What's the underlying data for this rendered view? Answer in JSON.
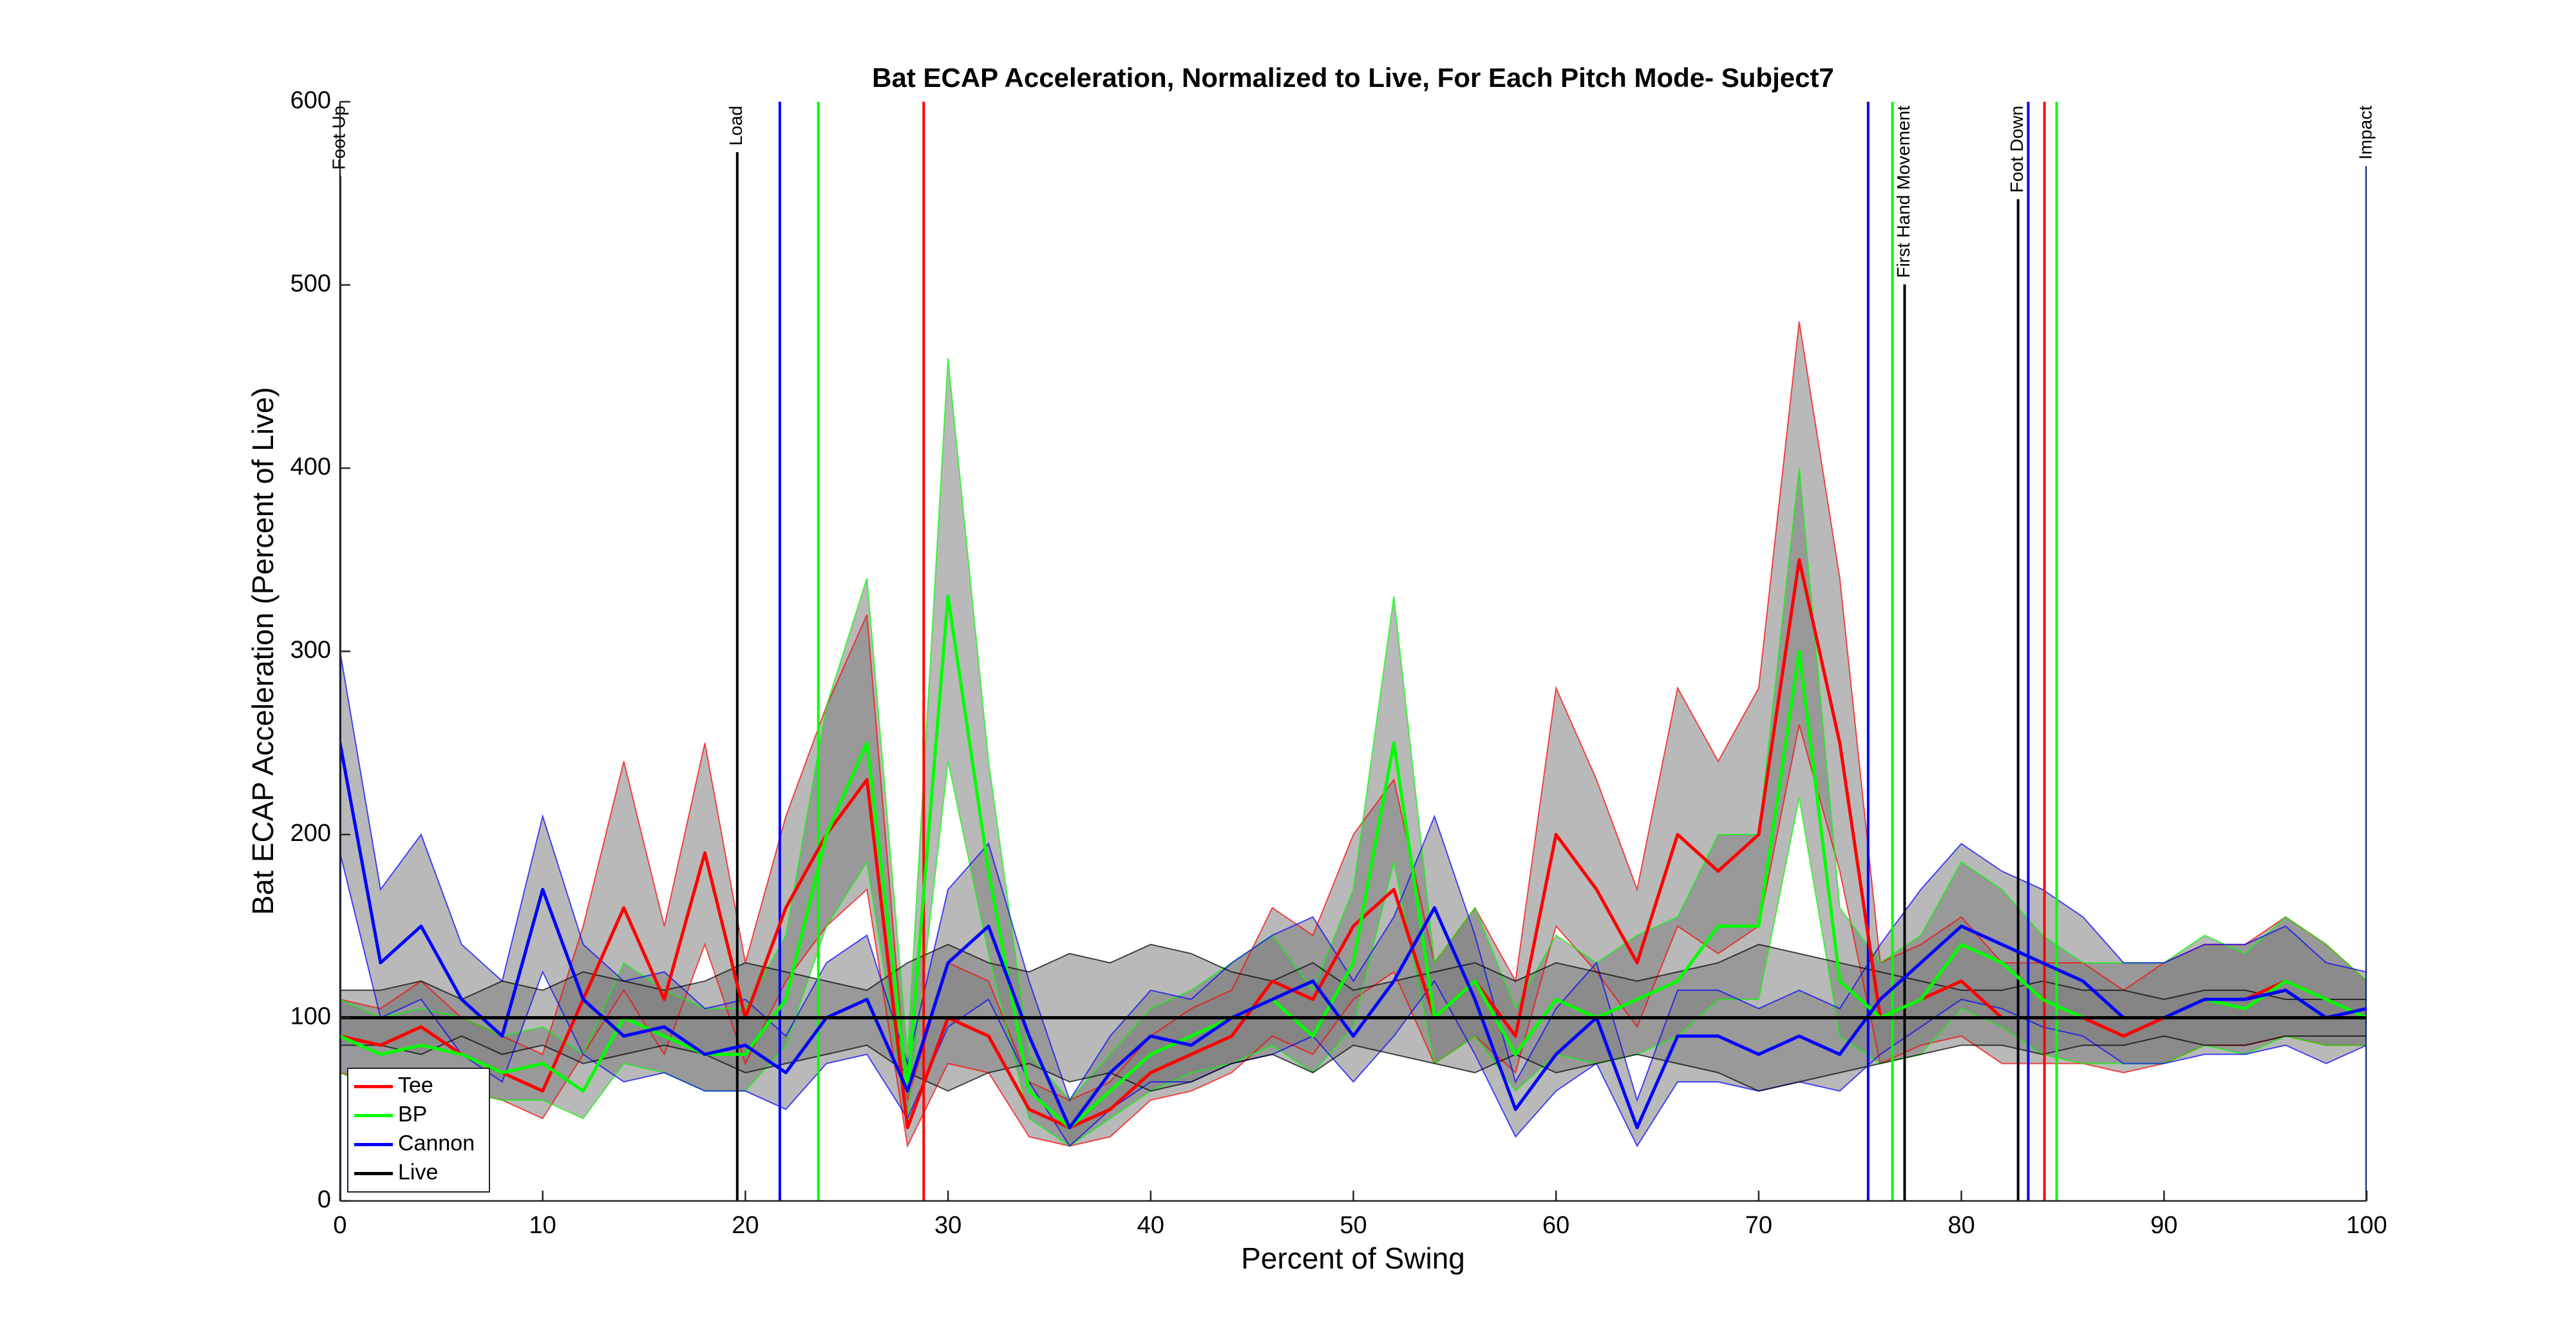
{
  "chart_data": {
    "type": "line",
    "title": "Bat ECAP Acceleration, Normalized to Live, For Each Pitch Mode- Subject7",
    "xlabel": "Percent of Swing",
    "ylabel": "Bat ECAP Acceleration (Percent of Live)",
    "xlim": [
      0,
      100
    ],
    "ylim": [
      0,
      600
    ],
    "xticks": [
      0,
      10,
      20,
      30,
      40,
      50,
      60,
      70,
      80,
      90,
      100
    ],
    "yticks": [
      0,
      100,
      200,
      300,
      400,
      500,
      600
    ],
    "legend": "lower left",
    "band_color": "#808080",
    "x": [
      0,
      2,
      4,
      6,
      8,
      10,
      12,
      14,
      16,
      18,
      20,
      22,
      24,
      26,
      28,
      30,
      32,
      34,
      36,
      38,
      40,
      42,
      44,
      46,
      48,
      50,
      52,
      54,
      56,
      58,
      60,
      62,
      64,
      66,
      68,
      70,
      72,
      74,
      76,
      78,
      80,
      82,
      84,
      86,
      88,
      90,
      92,
      94,
      96,
      98,
      100
    ],
    "series": [
      {
        "name": "Tee",
        "color": "#ff0000",
        "values": [
          90,
          85,
          95,
          80,
          70,
          60,
          110,
          160,
          110,
          190,
          100,
          160,
          200,
          230,
          40,
          100,
          90,
          50,
          40,
          50,
          70,
          80,
          90,
          120,
          110,
          150,
          170,
          100,
          120,
          90,
          200,
          170,
          130,
          200,
          180,
          200,
          350,
          250,
          100,
          110,
          120,
          100,
          100,
          100,
          90,
          100,
          110,
          110,
          120,
          110,
          100
        ],
        "upper": [
          110,
          105,
          120,
          100,
          90,
          80,
          150,
          240,
          150,
          250,
          130,
          210,
          270,
          320,
          55,
          130,
          120,
          65,
          55,
          65,
          90,
          105,
          115,
          160,
          145,
          200,
          230,
          130,
          160,
          120,
          280,
          230,
          170,
          280,
          240,
          280,
          480,
          340,
          130,
          140,
          155,
          130,
          130,
          130,
          115,
          130,
          140,
          140,
          155,
          140,
          120
        ],
        "lower": [
          70,
          65,
          70,
          60,
          55,
          45,
          80,
          115,
          80,
          140,
          75,
          120,
          150,
          170,
          30,
          75,
          70,
          35,
          30,
          35,
          55,
          60,
          70,
          90,
          80,
          110,
          125,
          75,
          90,
          70,
          150,
          125,
          95,
          150,
          135,
          150,
          260,
          180,
          75,
          85,
          90,
          75,
          75,
          75,
          70,
          75,
          85,
          85,
          90,
          85,
          85
        ]
      },
      {
        "name": "BP",
        "color": "#00ff00",
        "values": [
          90,
          80,
          85,
          80,
          70,
          75,
          60,
          100,
          90,
          80,
          80,
          110,
          200,
          250,
          60,
          330,
          180,
          60,
          40,
          60,
          80,
          90,
          100,
          110,
          90,
          130,
          250,
          100,
          120,
          80,
          110,
          100,
          110,
          120,
          150,
          150,
          300,
          120,
          100,
          110,
          140,
          130,
          110,
          100,
          100,
          100,
          110,
          105,
          120,
          110,
          100
        ],
        "upper": [
          110,
          100,
          105,
          100,
          90,
          95,
          80,
          130,
          115,
          105,
          105,
          145,
          270,
          340,
          80,
          460,
          240,
          80,
          55,
          80,
          105,
          115,
          130,
          145,
          115,
          170,
          330,
          130,
          160,
          105,
          145,
          130,
          145,
          155,
          200,
          200,
          400,
          160,
          130,
          145,
          185,
          170,
          145,
          130,
          130,
          130,
          145,
          135,
          155,
          140,
          120
        ],
        "lower": [
          70,
          60,
          65,
          60,
          55,
          55,
          45,
          75,
          70,
          60,
          60,
          85,
          150,
          185,
          45,
          240,
          135,
          45,
          30,
          45,
          60,
          70,
          75,
          85,
          70,
          95,
          185,
          75,
          90,
          60,
          80,
          75,
          80,
          90,
          110,
          110,
          220,
          90,
          75,
          80,
          105,
          95,
          80,
          75,
          75,
          75,
          85,
          80,
          90,
          85,
          85
        ]
      },
      {
        "name": "Cannon",
        "color": "#0000ff",
        "values": [
          250,
          130,
          150,
          110,
          90,
          170,
          110,
          90,
          95,
          80,
          85,
          70,
          100,
          110,
          60,
          130,
          150,
          90,
          40,
          70,
          90,
          85,
          100,
          110,
          120,
          90,
          120,
          160,
          110,
          50,
          80,
          100,
          40,
          90,
          90,
          80,
          90,
          80,
          110,
          130,
          150,
          140,
          130,
          120,
          100,
          100,
          110,
          110,
          115,
          100,
          105
        ],
        "upper": [
          300,
          170,
          200,
          140,
          120,
          210,
          140,
          120,
          125,
          105,
          110,
          90,
          130,
          145,
          75,
          170,
          195,
          120,
          55,
          90,
          115,
          110,
          130,
          145,
          155,
          120,
          155,
          210,
          145,
          65,
          105,
          130,
          55,
          115,
          115,
          105,
          115,
          105,
          140,
          170,
          195,
          180,
          170,
          155,
          130,
          130,
          140,
          140,
          150,
          130,
          125
        ],
        "lower": [
          190,
          100,
          110,
          80,
          65,
          125,
          80,
          65,
          70,
          60,
          60,
          50,
          75,
          80,
          45,
          95,
          110,
          65,
          30,
          50,
          65,
          65,
          75,
          80,
          90,
          65,
          90,
          120,
          80,
          35,
          60,
          75,
          30,
          65,
          65,
          60,
          65,
          60,
          80,
          95,
          110,
          105,
          95,
          90,
          75,
          75,
          80,
          80,
          85,
          75,
          85
        ]
      },
      {
        "name": "Live",
        "color": "#000000",
        "values": [
          100,
          100,
          100,
          100,
          100,
          100,
          100,
          100,
          100,
          100,
          100,
          100,
          100,
          100,
          100,
          100,
          100,
          100,
          100,
          100,
          100,
          100,
          100,
          100,
          100,
          100,
          100,
          100,
          100,
          100,
          100,
          100,
          100,
          100,
          100,
          100,
          100,
          100,
          100,
          100,
          100,
          100,
          100,
          100,
          100,
          100,
          100,
          100,
          100,
          100,
          100
        ],
        "upper": [
          115,
          115,
          120,
          110,
          120,
          115,
          125,
          120,
          115,
          120,
          130,
          125,
          120,
          115,
          130,
          140,
          130,
          125,
          135,
          130,
          140,
          135,
          125,
          120,
          130,
          115,
          120,
          125,
          130,
          120,
          130,
          125,
          120,
          125,
          130,
          140,
          135,
          130,
          125,
          120,
          115,
          115,
          120,
          115,
          115,
          110,
          115,
          115,
          110,
          110,
          110
        ],
        "lower": [
          85,
          85,
          80,
          90,
          80,
          85,
          75,
          80,
          85,
          80,
          70,
          75,
          80,
          85,
          70,
          60,
          70,
          75,
          65,
          70,
          60,
          65,
          75,
          80,
          70,
          85,
          80,
          75,
          70,
          80,
          70,
          75,
          80,
          75,
          70,
          60,
          65,
          70,
          75,
          80,
          85,
          85,
          80,
          85,
          85,
          90,
          85,
          85,
          90,
          90,
          90
        ]
      }
    ],
    "events": [
      {
        "x": 0,
        "color": "#00206b",
        "label": "Foot Up"
      },
      {
        "x": 19.6,
        "color": "#000000",
        "label": "Load"
      },
      {
        "x": 21.7,
        "color": "#0000ff"
      },
      {
        "x": 23.6,
        "color": "#00ff00"
      },
      {
        "x": 28.8,
        "color": "#ff0000"
      },
      {
        "x": 75.4,
        "color": "#0000ff"
      },
      {
        "x": 76.6,
        "color": "#00ff00"
      },
      {
        "x": 77.2,
        "color": "#000000",
        "label": "First Hand Movement"
      },
      {
        "x": 82.8,
        "color": "#000000",
        "label": "Foot Down"
      },
      {
        "x": 83.3,
        "color": "#0000ff"
      },
      {
        "x": 84.1,
        "color": "#ff0000"
      },
      {
        "x": 84.7,
        "color": "#00ff00"
      },
      {
        "x": 100,
        "color": "#00206b",
        "label": "Impact"
      }
    ]
  }
}
